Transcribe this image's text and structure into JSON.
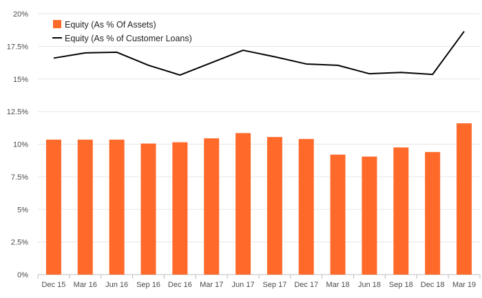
{
  "chart_data": {
    "type": "bar",
    "categories": [
      "Dec 15",
      "Mar 16",
      "Jun 16",
      "Sep 16",
      "Dec 16",
      "Mar 17",
      "Jun 17",
      "Sep 17",
      "Dec 17",
      "Mar 18",
      "Jun 18",
      "Sep 18",
      "Dec 18",
      "Mar 19"
    ],
    "series": [
      {
        "name": "Equity (As % Of Assets)",
        "type": "bar",
        "color": "#ff6a2b",
        "values": [
          10.35,
          10.35,
          10.35,
          10.05,
          10.15,
          10.45,
          10.85,
          10.55,
          10.4,
          9.2,
          9.05,
          9.75,
          9.4,
          11.6
        ]
      },
      {
        "name": "Equity (As % of Customer Loans)",
        "type": "line",
        "color": "#000000",
        "values": [
          16.6,
          17.0,
          17.05,
          16.05,
          15.3,
          16.25,
          17.2,
          16.7,
          16.15,
          16.05,
          15.4,
          15.5,
          15.35,
          18.65
        ]
      }
    ],
    "y_ticks": [
      "0%",
      "2.5%",
      "5%",
      "7.5%",
      "10%",
      "12.5%",
      "15%",
      "17.5%",
      "20%"
    ],
    "ylim": [
      0,
      20
    ],
    "grid": true,
    "legend_position": "top-left"
  }
}
